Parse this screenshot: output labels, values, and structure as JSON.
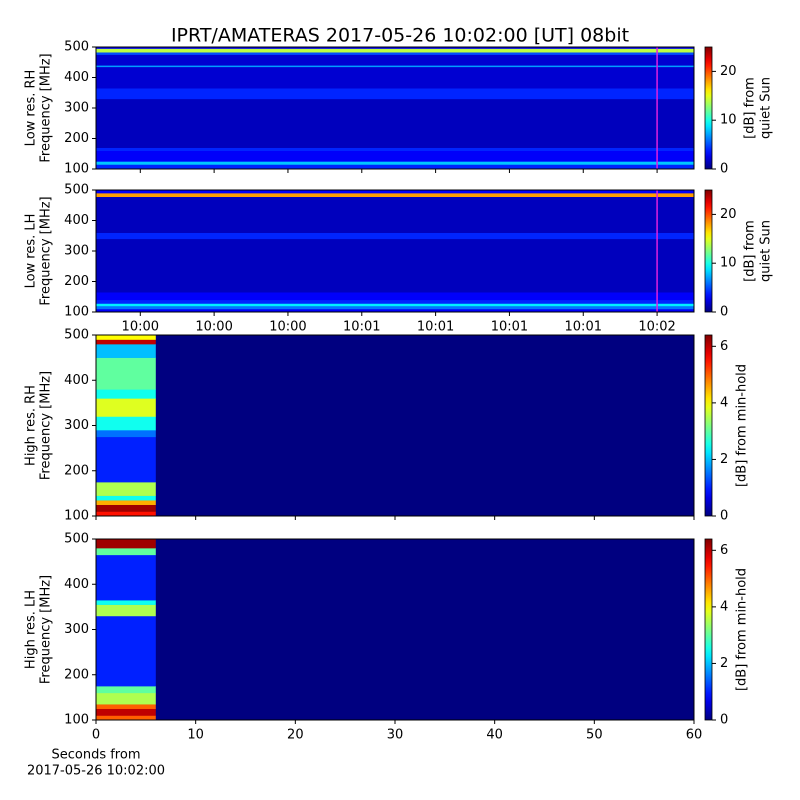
{
  "chart_data": [
    {
      "type": "heatmap",
      "title": "IPRT/AMATERAS 2017-05-26 10:02:00 [UT]   08bit",
      "ylabel": [
        "Low res. RH",
        "Frequency [MHz]"
      ],
      "colorbar_label": [
        "[dB] from",
        "quiet Sun"
      ],
      "colormap": "jet",
      "clim": [
        0,
        25
      ],
      "cticks": [
        0,
        10,
        20
      ],
      "xlim": [
        -32,
        130
      ],
      "ylim": [
        100,
        500
      ],
      "yticks": [
        100,
        200,
        300,
        400,
        500
      ],
      "marker": 120,
      "marker_color": "#e020e0",
      "ybins": [
        100,
        115,
        125,
        160,
        170,
        330,
        365,
        435,
        440,
        475,
        483,
        495,
        500
      ],
      "values": [
        4,
        8,
        3,
        4,
        1.5,
        4,
        2,
        7,
        2,
        5,
        14,
        3
      ]
    },
    {
      "type": "heatmap",
      "ylabel": [
        "Low res. LH",
        "Frequency [MHz]"
      ],
      "colorbar_label": [
        "[dB] from",
        "quiet Sun"
      ],
      "colormap": "jet",
      "clim": [
        0,
        25
      ],
      "cticks": [
        0,
        10,
        20
      ],
      "xlim": [
        -32,
        130
      ],
      "ylim": [
        100,
        500
      ],
      "yticks": [
        100,
        200,
        300,
        400,
        500
      ],
      "xticks": [
        {
          "value": -20,
          "label": "10:00"
        },
        {
          "value": 0,
          "label": "10:00"
        },
        {
          "value": 20,
          "label": "10:00"
        },
        {
          "value": 40,
          "label": "10:01"
        },
        {
          "value": 60,
          "label": "10:01"
        },
        {
          "value": 80,
          "label": "10:01"
        },
        {
          "value": 100,
          "label": "10:01"
        },
        {
          "value": 120,
          "label": "10:02"
        }
      ],
      "marker": 120,
      "marker_color": "#e020e0",
      "ybins": [
        100,
        110,
        120,
        128,
        140,
        165,
        340,
        360,
        478,
        490,
        500
      ],
      "values": [
        3,
        6,
        9,
        4,
        3,
        1.5,
        4,
        1.5,
        18,
        3
      ]
    },
    {
      "type": "heatmap",
      "ylabel": [
        "High res. RH",
        "Frequency [MHz]"
      ],
      "colorbar_label": [
        "[dB] from min-hold"
      ],
      "colormap": "jet",
      "clim": [
        0,
        6.4
      ],
      "cticks": [
        0,
        2,
        4,
        6
      ],
      "xlim": [
        0,
        60
      ],
      "ylim": [
        100,
        500
      ],
      "yticks": [
        100,
        200,
        300,
        400,
        500
      ],
      "xbins": [
        0,
        6
      ],
      "ybins": [
        100,
        110,
        125,
        135,
        145,
        175,
        275,
        290,
        320,
        360,
        380,
        450,
        480,
        490,
        500
      ],
      "values": [
        5.5,
        6.2,
        4.5,
        2.5,
        3.5,
        1,
        1.5,
        2.5,
        3.8,
        2.5,
        3,
        2,
        6,
        4
      ]
    },
    {
      "type": "heatmap",
      "ylabel": [
        "High res. LH",
        "Frequency [MHz]"
      ],
      "colorbar_label": [
        "[dB] from min-hold"
      ],
      "colormap": "jet",
      "clim": [
        0,
        6.4
      ],
      "cticks": [
        0,
        2,
        4,
        6
      ],
      "xlim": [
        0,
        60
      ],
      "ylim": [
        100,
        500
      ],
      "yticks": [
        100,
        200,
        300,
        400,
        500
      ],
      "xticks": [
        0,
        10,
        20,
        30,
        40,
        50,
        60
      ],
      "xlabel": [
        "Seconds from",
        "2017-05-26 10:02:00"
      ],
      "xbins": [
        0,
        6
      ],
      "ybins": [
        100,
        110,
        125,
        135,
        160,
        175,
        330,
        355,
        365,
        465,
        480,
        500
      ],
      "values": [
        5,
        6,
        5,
        3.5,
        3,
        1,
        3.5,
        2.5,
        1,
        3,
        6.2
      ]
    }
  ]
}
